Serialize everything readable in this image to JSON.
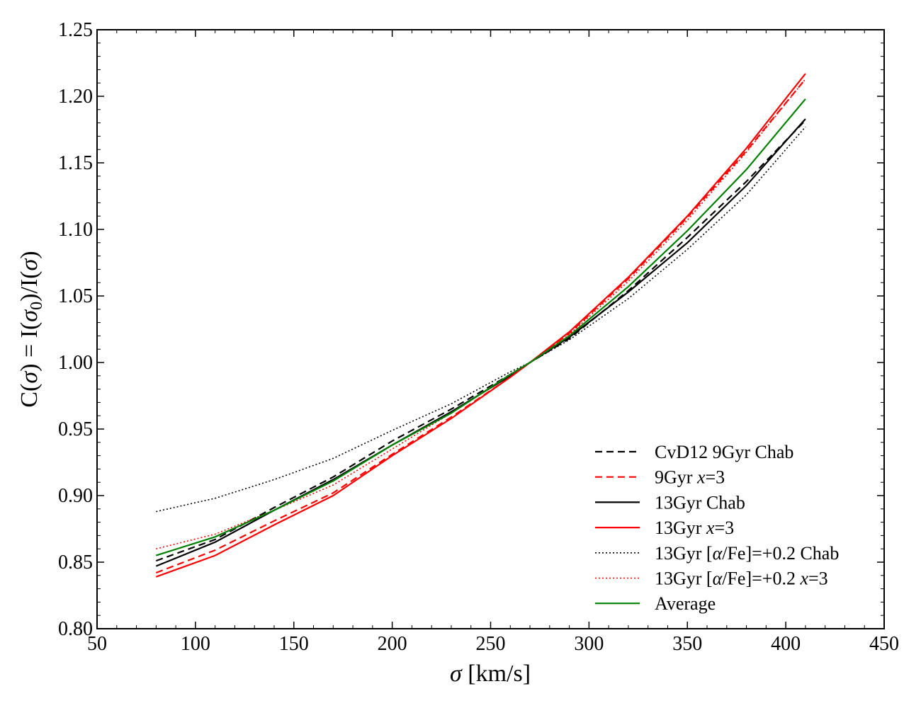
{
  "chart_data": {
    "type": "line",
    "title": "",
    "xlabel": "σ [km/s]",
    "ylabel": "C(σ) = I(σ0)/I(σ)",
    "xlim": [
      50,
      450
    ],
    "ylim": [
      0.8,
      1.25
    ],
    "xticks": [
      50,
      100,
      150,
      200,
      250,
      300,
      350,
      400,
      450
    ],
    "xtick_labels": [
      "50",
      "100",
      "150",
      "200",
      "250",
      "300",
      "350",
      "400",
      "450"
    ],
    "yticks": [
      0.8,
      0.85,
      0.9,
      0.95,
      1.0,
      1.05,
      1.1,
      1.15,
      1.2,
      1.25
    ],
    "ytick_labels": [
      "0.80",
      "0.85",
      "0.90",
      "0.95",
      "1.00",
      "1.05",
      "1.10",
      "1.15",
      "1.20",
      "1.25"
    ],
    "grid": false,
    "legend_position": "lower-right",
    "x": [
      80,
      110,
      140,
      170,
      200,
      230,
      260,
      270,
      290,
      320,
      350,
      380,
      410
    ],
    "series": [
      {
        "name": "CvD12 9Gyr Chab",
        "color": "#000000",
        "dash": "dashed",
        "values": [
          0.851,
          0.867,
          0.891,
          0.914,
          0.941,
          0.965,
          0.991,
          1.0,
          1.018,
          1.054,
          1.094,
          1.136,
          1.182
        ]
      },
      {
        "name": "9Gyr x=3",
        "color": "#ff0000",
        "dash": "dashed",
        "values": [
          0.842,
          0.859,
          0.881,
          0.902,
          0.931,
          0.959,
          0.989,
          1.0,
          1.022,
          1.063,
          1.109,
          1.159,
          1.213
        ]
      },
      {
        "name": "13Gyr Chab",
        "color": "#000000",
        "dash": "solid",
        "values": [
          0.847,
          0.865,
          0.889,
          0.912,
          0.938,
          0.963,
          0.99,
          1.0,
          1.019,
          1.053,
          1.09,
          1.133,
          1.183
        ]
      },
      {
        "name": "13Gyr x=3",
        "color": "#ff0000",
        "dash": "solid",
        "values": [
          0.839,
          0.855,
          0.878,
          0.9,
          0.93,
          0.958,
          0.989,
          1.0,
          1.023,
          1.064,
          1.11,
          1.161,
          1.217
        ]
      },
      {
        "name": "13Gyr [α/Fe]=+0.2 Chab",
        "color": "#000000",
        "dash": "dotted",
        "values": [
          0.888,
          0.898,
          0.912,
          0.928,
          0.949,
          0.969,
          0.993,
          1.0,
          1.017,
          1.048,
          1.085,
          1.126,
          1.177
        ]
      },
      {
        "name": "13Gyr [α/Fe]=+0.2 x=3",
        "color": "#ff0000",
        "dash": "dotted",
        "values": [
          0.86,
          0.871,
          0.889,
          0.908,
          0.935,
          0.962,
          0.991,
          1.0,
          1.021,
          1.061,
          1.107,
          1.158,
          1.213
        ]
      },
      {
        "name": "Average",
        "color": "#008000",
        "dash": "solid",
        "values": [
          0.855,
          0.869,
          0.889,
          0.911,
          0.938,
          0.962,
          0.991,
          1.0,
          1.02,
          1.057,
          1.099,
          1.145,
          1.198
        ]
      }
    ],
    "legend": [
      {
        "label": "CvD12 9Gyr Chab"
      },
      {
        "label": "9Gyr x=3"
      },
      {
        "label": "13Gyr Chab"
      },
      {
        "label": "13Gyr x=3"
      },
      {
        "label": "13Gyr [α/Fe]=+0.2 Chab"
      },
      {
        "label": "13Gyr [α/Fe]=+0.2 x=3"
      },
      {
        "label": "Average"
      }
    ]
  }
}
